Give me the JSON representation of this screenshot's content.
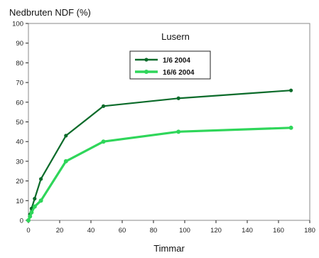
{
  "chart_data": {
    "type": "line",
    "title": "Lusern",
    "ylabel": "Nedbruten NDF (%)",
    "xlabel": "Timmar",
    "xlim": [
      0,
      180
    ],
    "ylim": [
      0,
      100
    ],
    "x_ticks": [
      0,
      20,
      40,
      60,
      80,
      100,
      120,
      140,
      160,
      180
    ],
    "y_ticks": [
      0,
      10,
      20,
      30,
      40,
      50,
      60,
      70,
      80,
      90,
      100
    ],
    "grid": false,
    "legend_placement": "top-center",
    "series": [
      {
        "name": "1/6 2004",
        "color": "#0b6b2a",
        "x": [
          0,
          1,
          2,
          4,
          8,
          24,
          48,
          96,
          168
        ],
        "y": [
          0,
          3,
          6,
          11,
          21,
          43,
          58,
          62,
          66
        ]
      },
      {
        "name": "16/6 2004",
        "color": "#2fd65a",
        "x": [
          0,
          1,
          2,
          4,
          8,
          24,
          48,
          96,
          168
        ],
        "y": [
          0,
          2,
          4,
          7,
          10,
          30,
          40,
          45,
          47
        ]
      }
    ]
  }
}
